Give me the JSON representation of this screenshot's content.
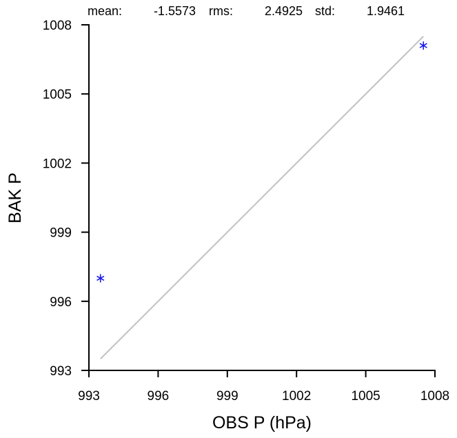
{
  "stats": {
    "mean_label": "mean:",
    "mean_value": "-1.5573",
    "rms_label": "rms:",
    "rms_value": "2.4925",
    "std_label": "std:",
    "std_value": "1.9461"
  },
  "chart_data": {
    "type": "scatter",
    "xlabel": "OBS P  (hPa)",
    "ylabel": "BAK P",
    "xlim": [
      993,
      1008
    ],
    "ylim": [
      993,
      1008
    ],
    "xticks": [
      "993",
      "996",
      "999",
      "1002",
      "1005",
      "1008"
    ],
    "yticks": [
      "993",
      "996",
      "999",
      "1002",
      "1005",
      "1008"
    ],
    "grid": false,
    "marker_color": "#1a1ae6",
    "reference_line_color": "#c0c0c0",
    "reference_line": {
      "x": [
        993.5,
        1007.5
      ],
      "y": [
        993.5,
        1007.5
      ]
    },
    "series": [
      {
        "x": [
          993.5,
          1007.5
        ],
        "y": [
          997.0,
          1007.1
        ]
      }
    ]
  }
}
